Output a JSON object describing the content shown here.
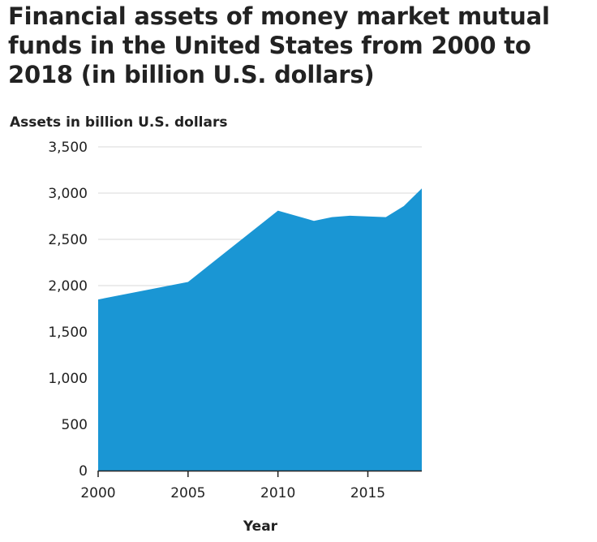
{
  "chart_data": {
    "type": "area",
    "title": "Financial assets of money market mutual funds in the United States from 2000 to 2018 (in billion U.S. dollars)",
    "xlabel": "Year",
    "ylabel": "Assets in billion U.S. dollars",
    "x": [
      2000,
      2005,
      2010,
      2012,
      2013,
      2014,
      2016,
      2017,
      2018
    ],
    "values": [
      1850,
      2040,
      2810,
      2700,
      2740,
      2755,
      2740,
      2860,
      3050
    ],
    "xlim": [
      2000,
      2018
    ],
    "ylim": [
      0,
      3500
    ],
    "xticks": [
      2000,
      2005,
      2010,
      2015
    ],
    "xtick_labels": [
      "2000",
      "2005",
      "2010",
      "2015"
    ],
    "yticks": [
      0,
      500,
      1000,
      1500,
      2000,
      2500,
      3000,
      3500
    ],
    "ytick_labels": [
      "0",
      "500",
      "1,000",
      "1,500",
      "2,000",
      "2,500",
      "3,000",
      "3,500"
    ],
    "grid": true,
    "fill_color": "#1a96d4",
    "grid_color": "#d9d9d9",
    "axis_color": "#222222"
  }
}
